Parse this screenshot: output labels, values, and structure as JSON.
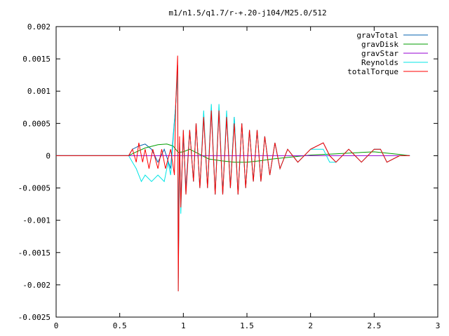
{
  "chart_data": {
    "type": "line",
    "title": "m1/n1.5/q1.7/r-+.20-j104/M25.0/512",
    "xlabel": "",
    "ylabel": "",
    "xlim": [
      0,
      3
    ],
    "ylim": [
      -0.0025,
      0.002
    ],
    "x_ticks": [
      "0",
      "0.5",
      "1",
      "1.5",
      "2",
      "2.5",
      "3"
    ],
    "y_ticks": [
      "0.002",
      "0.0015",
      "0.001",
      "0.0005",
      "0",
      "-0.0005",
      "-0.001",
      "-0.0015",
      "-0.002",
      "-0.0025"
    ],
    "grid": false,
    "legend_position": "top-right",
    "series": [
      {
        "name": "gravTotal",
        "color": "#0060ad",
        "points": [
          [
            0,
            0
          ],
          [
            0.57,
            0
          ],
          [
            0.6,
            0.0001
          ],
          [
            0.65,
            0.00015
          ],
          [
            0.7,
            0.00018
          ],
          [
            0.75,
            0.0001
          ],
          [
            0.8,
            -0.0001
          ],
          [
            0.85,
            0.0001
          ],
          [
            0.9,
            -0.0002
          ],
          [
            0.94,
            0.0008
          ],
          [
            0.955,
            0.0014
          ],
          [
            0.96,
            -0.0019
          ],
          [
            0.97,
            0.0002
          ],
          [
            0.98,
            -0.0007
          ],
          [
            1.0,
            0.0003
          ],
          [
            1.02,
            -0.0005
          ],
          [
            1.05,
            0.0004
          ],
          [
            1.08,
            -0.0004
          ],
          [
            1.1,
            0.0005
          ],
          [
            1.13,
            -0.0005
          ],
          [
            1.16,
            0.0006
          ],
          [
            1.19,
            -0.0005
          ],
          [
            1.22,
            0.0007
          ],
          [
            1.25,
            -0.0006
          ],
          [
            1.28,
            0.0007
          ],
          [
            1.31,
            -0.0006
          ],
          [
            1.34,
            0.0006
          ],
          [
            1.37,
            -0.0005
          ],
          [
            1.4,
            0.0006
          ],
          [
            1.43,
            -0.0006
          ],
          [
            1.46,
            0.0005
          ],
          [
            1.49,
            -0.0005
          ],
          [
            1.52,
            0.0004
          ],
          [
            1.55,
            -0.0004
          ],
          [
            1.58,
            0.0004
          ],
          [
            1.61,
            -0.0004
          ],
          [
            1.64,
            0.0003
          ],
          [
            1.68,
            -0.0003
          ],
          [
            1.72,
            0.0002
          ],
          [
            1.76,
            -0.0002
          ],
          [
            1.82,
            0.0001
          ],
          [
            1.9,
            -0.0001
          ],
          [
            2.0,
            0.0001
          ],
          [
            2.1,
            0.0002
          ],
          [
            2.15,
            0
          ],
          [
            2.2,
            -0.0001
          ],
          [
            2.3,
            0.0001
          ],
          [
            2.4,
            -0.0001
          ],
          [
            2.5,
            0.0001
          ],
          [
            2.55,
            0.0001
          ],
          [
            2.6,
            -0.0001
          ],
          [
            2.7,
            0
          ],
          [
            2.78,
            0
          ]
        ]
      },
      {
        "name": "gravDisk",
        "color": "#009e00",
        "points": [
          [
            0,
            0
          ],
          [
            0.57,
            0
          ],
          [
            0.62,
            5e-05
          ],
          [
            0.7,
            0.00012
          ],
          [
            0.8,
            0.00017
          ],
          [
            0.87,
            0.00018
          ],
          [
            0.92,
            0.00015
          ],
          [
            0.96,
            5e-05
          ],
          [
            1.0,
            6e-05
          ],
          [
            1.05,
            0.0001
          ],
          [
            1.1,
            5e-05
          ],
          [
            1.2,
            -5e-05
          ],
          [
            1.3,
            -8e-05
          ],
          [
            1.4,
            -0.0001
          ],
          [
            1.5,
            -0.0001
          ],
          [
            1.6,
            -8e-05
          ],
          [
            1.7,
            -5e-05
          ],
          [
            1.8,
            -3e-05
          ],
          [
            1.9,
            -1e-05
          ],
          [
            2.0,
            1e-05
          ],
          [
            2.1,
            2e-05
          ],
          [
            2.2,
            3e-05
          ],
          [
            2.3,
            4e-05
          ],
          [
            2.4,
            5e-05
          ],
          [
            2.5,
            6e-05
          ],
          [
            2.6,
            4e-05
          ],
          [
            2.7,
            2e-05
          ],
          [
            2.78,
            0
          ]
        ]
      },
      {
        "name": "gravStar",
        "color": "#9400d3",
        "points": [
          [
            0,
            0
          ],
          [
            2.78,
            0
          ]
        ]
      },
      {
        "name": "Reynolds",
        "color": "#00e5e5",
        "points": [
          [
            0,
            0
          ],
          [
            0.57,
            0
          ],
          [
            0.6,
            -0.0001
          ],
          [
            0.63,
            -0.0002
          ],
          [
            0.67,
            -0.0004
          ],
          [
            0.7,
            -0.0003
          ],
          [
            0.75,
            -0.0004
          ],
          [
            0.8,
            -0.0003
          ],
          [
            0.85,
            -0.0004
          ],
          [
            0.88,
            -0.0001
          ],
          [
            0.9,
            -0.0003
          ],
          [
            0.94,
            0.0008
          ],
          [
            0.955,
            0.0013
          ],
          [
            0.96,
            -0.0021
          ],
          [
            0.97,
            0.0002
          ],
          [
            0.98,
            -0.0009
          ],
          [
            1.0,
            0.0004
          ],
          [
            1.02,
            -0.0006
          ],
          [
            1.05,
            0.0004
          ],
          [
            1.08,
            -0.0004
          ],
          [
            1.1,
            0.0005
          ],
          [
            1.13,
            -0.0005
          ],
          [
            1.16,
            0.0007
          ],
          [
            1.19,
            -0.0005
          ],
          [
            1.22,
            0.0008
          ],
          [
            1.25,
            -0.0006
          ],
          [
            1.28,
            0.0008
          ],
          [
            1.31,
            -0.0006
          ],
          [
            1.34,
            0.0007
          ],
          [
            1.37,
            -0.0005
          ],
          [
            1.4,
            0.0006
          ],
          [
            1.43,
            -0.0006
          ],
          [
            1.46,
            0.0005
          ],
          [
            1.49,
            -0.0005
          ],
          [
            1.52,
            0.0004
          ],
          [
            1.55,
            -0.0004
          ],
          [
            1.58,
            0.0004
          ],
          [
            1.61,
            -0.0004
          ],
          [
            1.64,
            0.0003
          ],
          [
            1.68,
            -0.0003
          ],
          [
            1.72,
            0.0002
          ],
          [
            1.76,
            -0.0002
          ],
          [
            1.82,
            0.0001
          ],
          [
            1.9,
            -0.0001
          ],
          [
            2.0,
            0.0001
          ],
          [
            2.1,
            0.0001
          ],
          [
            2.15,
            -0.0001
          ],
          [
            2.2,
            -0.0001
          ],
          [
            2.3,
            0.0001
          ],
          [
            2.4,
            -0.0001
          ],
          [
            2.5,
            0.0001
          ],
          [
            2.55,
            0.0001
          ],
          [
            2.6,
            -0.0001
          ],
          [
            2.7,
            0
          ],
          [
            2.78,
            0
          ]
        ]
      },
      {
        "name": "totalTorque",
        "color": "#ff0000",
        "points": [
          [
            0,
            0
          ],
          [
            0.57,
            0
          ],
          [
            0.6,
            0.0001
          ],
          [
            0.63,
            -0.0001
          ],
          [
            0.65,
            0.0002
          ],
          [
            0.68,
            -0.0001
          ],
          [
            0.7,
            0.0001
          ],
          [
            0.73,
            -0.0002
          ],
          [
            0.76,
            0.0001
          ],
          [
            0.8,
            -0.0002
          ],
          [
            0.83,
            0.0001
          ],
          [
            0.86,
            -0.0002
          ],
          [
            0.9,
            0.0001
          ],
          [
            0.93,
            -0.0003
          ],
          [
            0.94,
            0.0008
          ],
          [
            0.955,
            0.00155
          ],
          [
            0.96,
            -0.0021
          ],
          [
            0.97,
            0.0003
          ],
          [
            0.98,
            -0.0008
          ],
          [
            1.0,
            0.0004
          ],
          [
            1.02,
            -0.0006
          ],
          [
            1.05,
            0.0004
          ],
          [
            1.08,
            -0.0004
          ],
          [
            1.1,
            0.0005
          ],
          [
            1.13,
            -0.0005
          ],
          [
            1.16,
            0.0006
          ],
          [
            1.19,
            -0.0005
          ],
          [
            1.22,
            0.0007
          ],
          [
            1.25,
            -0.0006
          ],
          [
            1.28,
            0.0007
          ],
          [
            1.31,
            -0.0006
          ],
          [
            1.34,
            0.0006
          ],
          [
            1.37,
            -0.0005
          ],
          [
            1.4,
            0.0005
          ],
          [
            1.43,
            -0.0006
          ],
          [
            1.46,
            0.0005
          ],
          [
            1.49,
            -0.0005
          ],
          [
            1.52,
            0.0004
          ],
          [
            1.55,
            -0.0004
          ],
          [
            1.58,
            0.0004
          ],
          [
            1.61,
            -0.0004
          ],
          [
            1.64,
            0.0003
          ],
          [
            1.68,
            -0.0003
          ],
          [
            1.72,
            0.0002
          ],
          [
            1.76,
            -0.0002
          ],
          [
            1.82,
            0.0001
          ],
          [
            1.9,
            -0.0001
          ],
          [
            2.0,
            0.0001
          ],
          [
            2.1,
            0.0002
          ],
          [
            2.15,
            0
          ],
          [
            2.2,
            -0.0001
          ],
          [
            2.3,
            0.0001
          ],
          [
            2.4,
            -0.0001
          ],
          [
            2.5,
            0.0001
          ],
          [
            2.55,
            0.0001
          ],
          [
            2.6,
            -0.0001
          ],
          [
            2.7,
            0
          ],
          [
            2.78,
            0
          ]
        ]
      }
    ]
  }
}
